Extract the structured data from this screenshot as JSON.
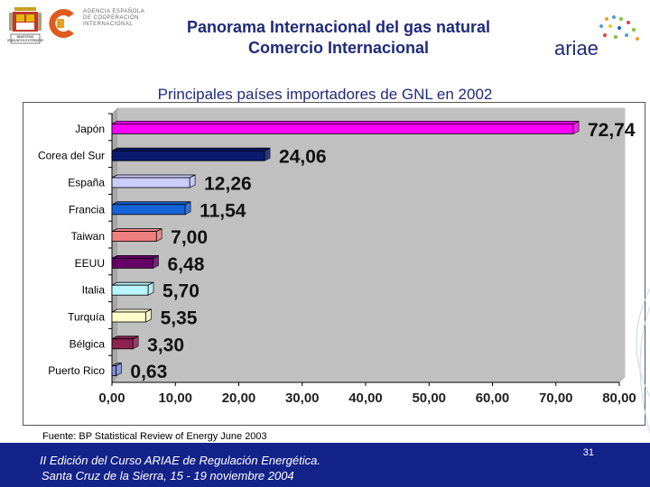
{
  "header": {
    "org_text": "AGENCIA ESPAÑOLA DE COOPERACIÓN INTERNACIONAL",
    "title_line1": "Panorama Internacional del gas natural",
    "title_line2": "Comercio Internacional",
    "ariae_logo_text": "ariae"
  },
  "chart_data": {
    "type": "bar",
    "orientation": "horizontal",
    "title": "Principales países importadores de GNL en 2002",
    "categories": [
      "Japón",
      "Corea del Sur",
      "España",
      "Francia",
      "Taiwan",
      "EEUU",
      "Italia",
      "Turquía",
      "Bélgica",
      "Puerto Rico"
    ],
    "values": [
      72.74,
      24.06,
      12.26,
      11.54,
      7.0,
      6.48,
      5.7,
      5.35,
      3.3,
      0.63
    ],
    "value_labels": [
      "72,74",
      "24,06",
      "12,26",
      "11,54",
      "7,00",
      "6,48",
      "5,70",
      "5,35",
      "3,30",
      "0,63"
    ],
    "colors": [
      "#ff00ff",
      "#0a1a6e",
      "#ccccff",
      "#1565d8",
      "#f08080",
      "#660066",
      "#b8f5ff",
      "#ffffcc",
      "#8b2252",
      "#8090e0"
    ],
    "xlim": [
      0,
      80
    ],
    "xticks": [
      "0,00",
      "10,00",
      "20,00",
      "30,00",
      "40,00",
      "50,00",
      "60,00",
      "70,00",
      "80,00"
    ],
    "xtick_values": [
      0,
      10,
      20,
      30,
      40,
      50,
      60,
      70,
      80
    ],
    "plot_background": "#c0c0c0",
    "grid": false,
    "legend": "none"
  },
  "source": "Fuente: BP Statistical Review of Energy June 2003",
  "footer": {
    "line1": "II Edición del Curso ARIAE de Regulación Energética.",
    "line2": "Santa Cruz de la Sierra, 15 - 19 noviembre 2004",
    "page_number": "31",
    "background": "#14238a"
  }
}
